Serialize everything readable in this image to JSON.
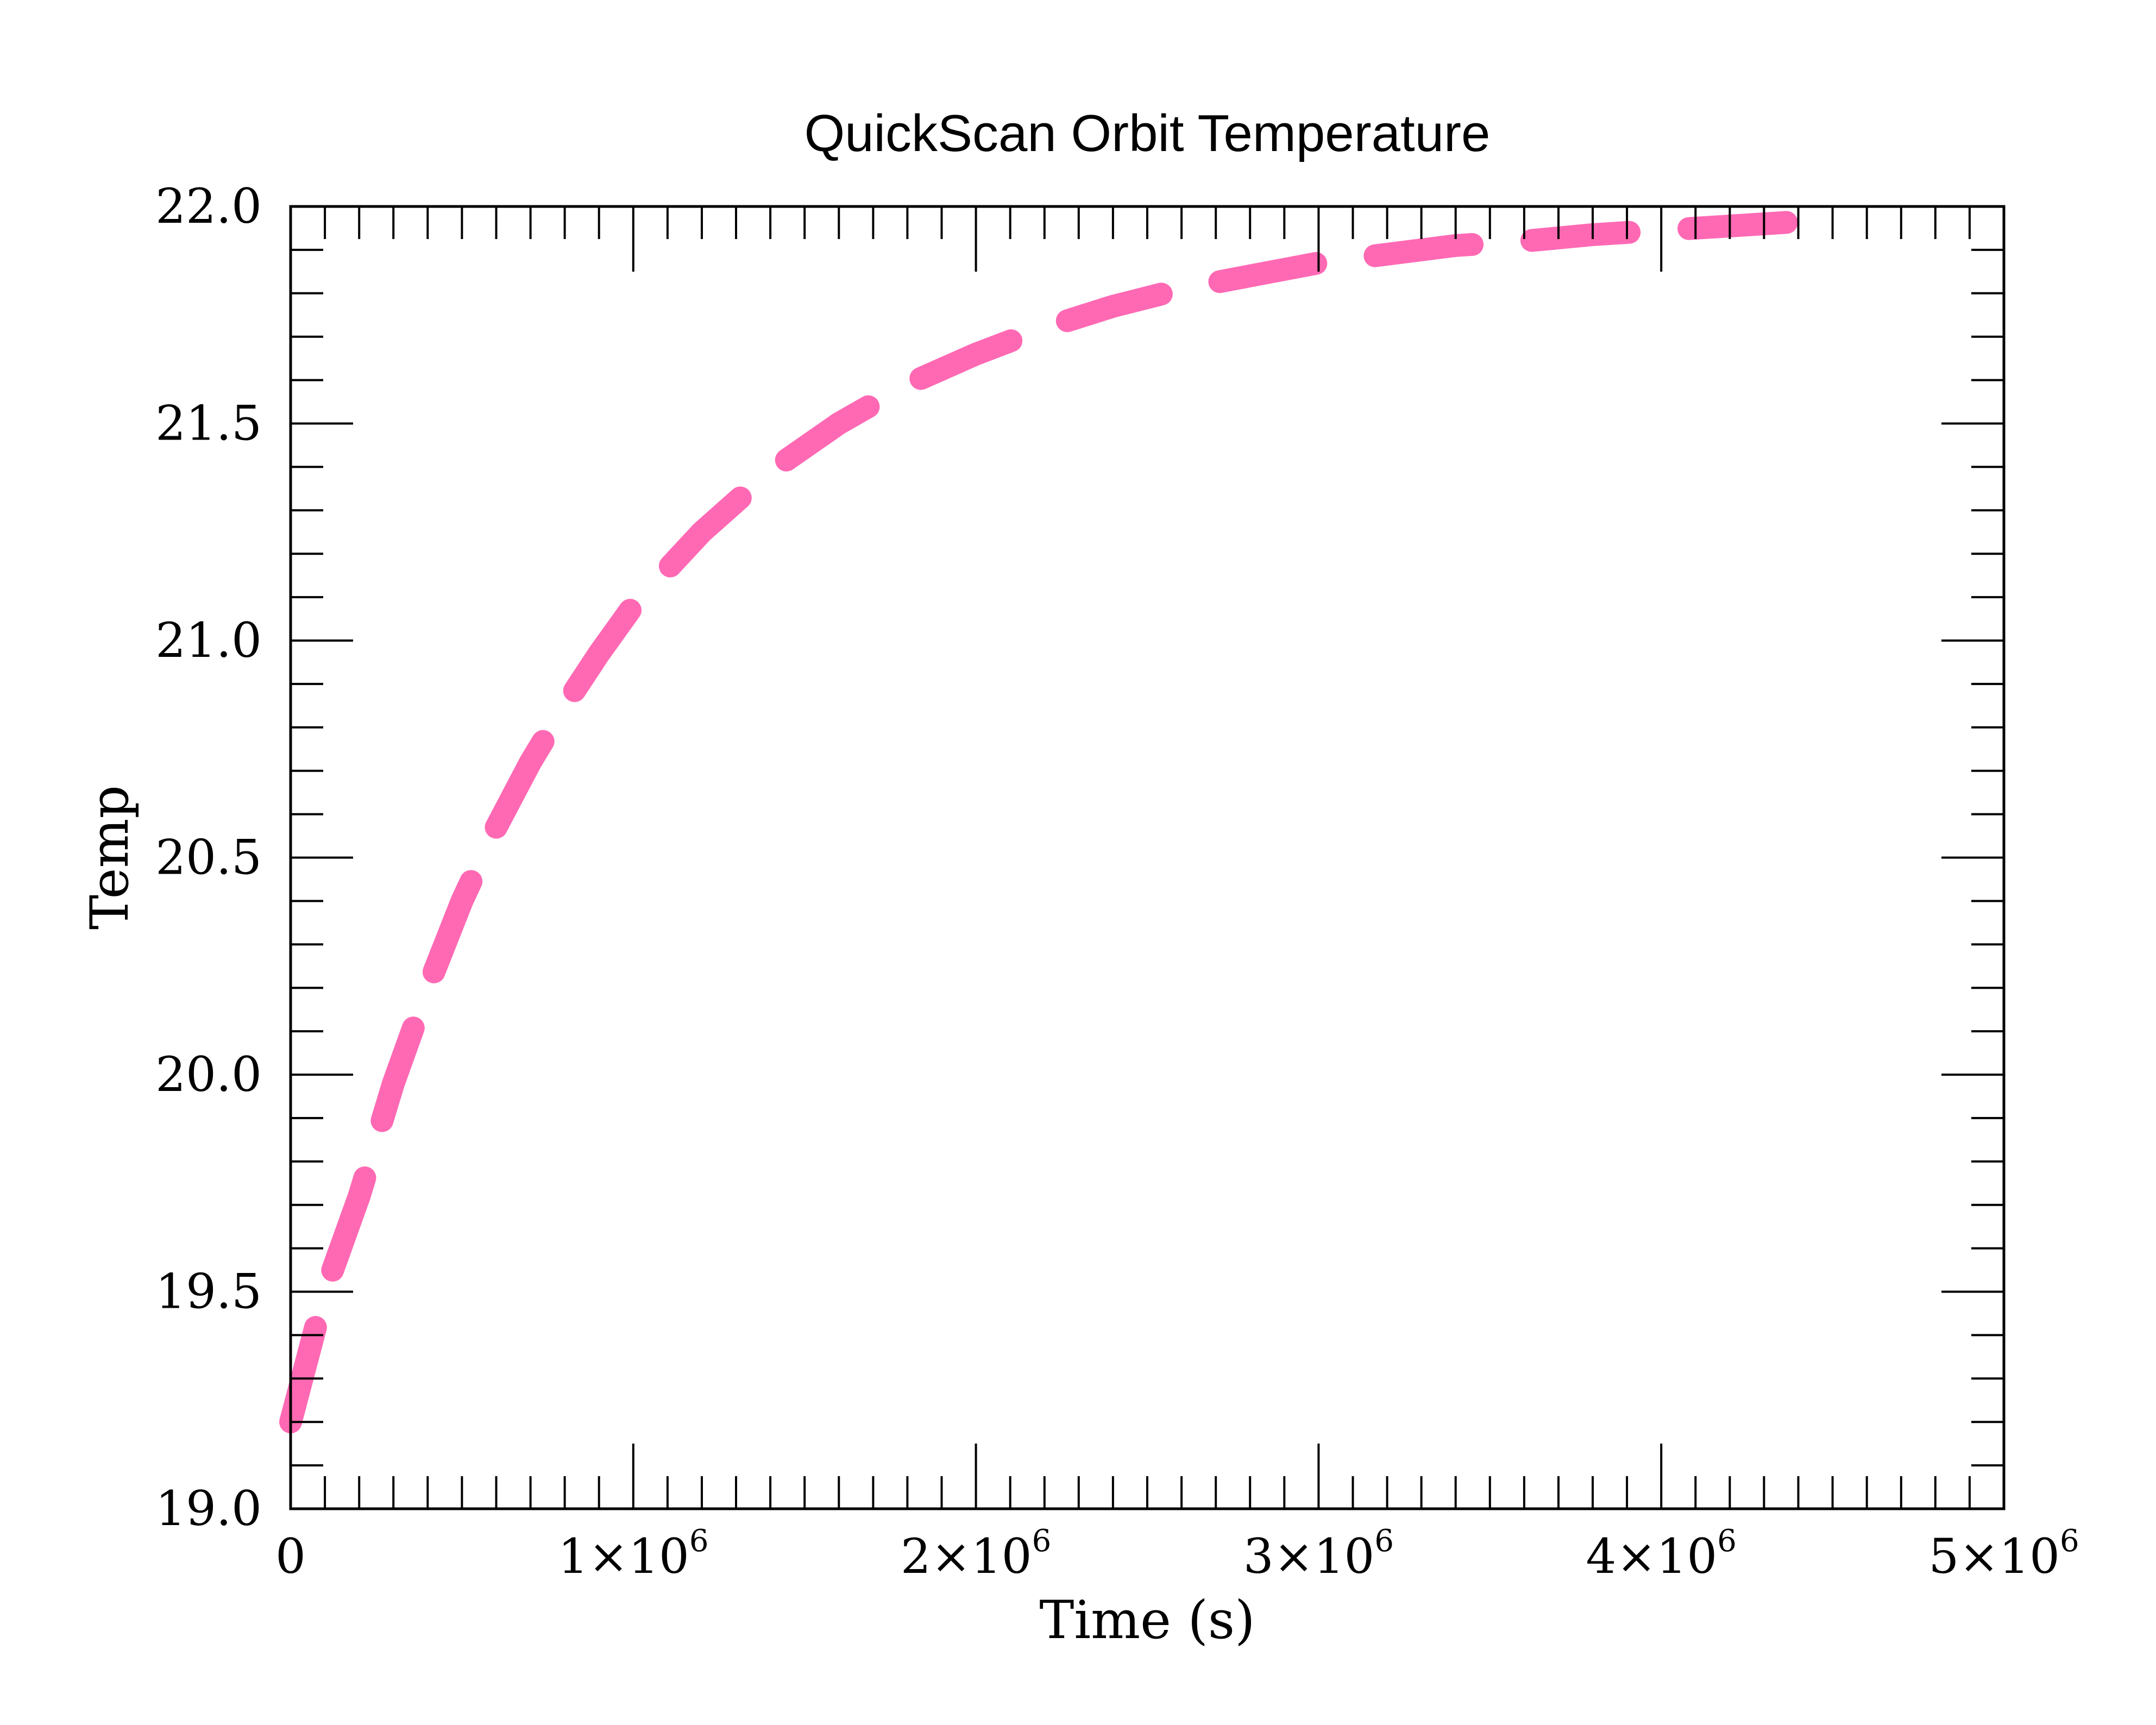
{
  "chart_data": {
    "type": "line",
    "title": "QuickScan Orbit Temperature",
    "xlabel": "Time (s)",
    "ylabel": "Temp",
    "xlim": [
      0,
      5000000
    ],
    "ylim": [
      19.0,
      22.0
    ],
    "x_ticks": [
      {
        "value": 0,
        "label": "0",
        "mantissa": "",
        "exponent": ""
      },
      {
        "value": 1000000,
        "label": "1×10^6",
        "mantissa": "1×10",
        "exponent": "6"
      },
      {
        "value": 2000000,
        "label": "2×10^6",
        "mantissa": "2×10",
        "exponent": "6"
      },
      {
        "value": 3000000,
        "label": "3×10^6",
        "mantissa": "3×10",
        "exponent": "6"
      },
      {
        "value": 4000000,
        "label": "4×10^6",
        "mantissa": "4×10",
        "exponent": "6"
      },
      {
        "value": 5000000,
        "label": "5×10^6",
        "mantissa": "5×10",
        "exponent": "6"
      }
    ],
    "y_ticks": [
      {
        "value": 19.0,
        "label": "19.0"
      },
      {
        "value": 19.5,
        "label": "19.5"
      },
      {
        "value": 20.0,
        "label": "20.0"
      },
      {
        "value": 20.5,
        "label": "20.5"
      },
      {
        "value": 21.0,
        "label": "21.0"
      },
      {
        "value": 21.5,
        "label": "21.5"
      },
      {
        "value": 22.0,
        "label": "22.0"
      }
    ],
    "grid": false,
    "series": [
      {
        "color": "#ff69b4",
        "line_style": "dashed",
        "x": [
          0,
          100000,
          200000,
          300000,
          400000,
          500000,
          600000,
          700000,
          800000,
          900000,
          1000000,
          1200000,
          1400000,
          1600000,
          1800000,
          2000000,
          2200000,
          2400000,
          2600000,
          2800000,
          3000000,
          3200000,
          3400000,
          3600000,
          3800000,
          4000000,
          4200000,
          4400000
        ],
        "y": [
          19.2,
          19.5,
          19.72,
          19.98,
          20.2,
          20.4,
          20.57,
          20.72,
          20.85,
          20.97,
          21.08,
          21.25,
          21.39,
          21.5,
          21.59,
          21.66,
          21.72,
          21.77,
          21.81,
          21.84,
          21.87,
          21.89,
          21.91,
          21.92,
          21.935,
          21.945,
          21.955,
          21.965
        ]
      }
    ]
  }
}
